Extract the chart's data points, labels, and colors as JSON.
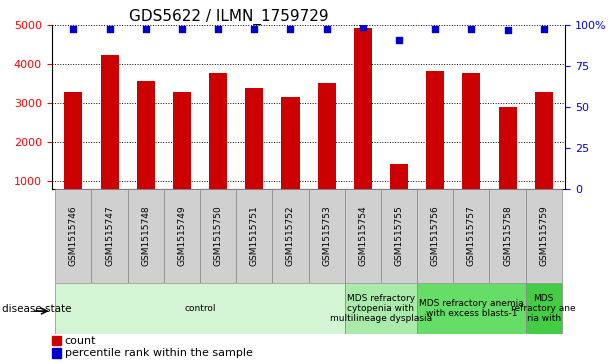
{
  "title": "GDS5622 / ILMN_1759729",
  "samples": [
    "GSM1515746",
    "GSM1515747",
    "GSM1515748",
    "GSM1515749",
    "GSM1515750",
    "GSM1515751",
    "GSM1515752",
    "GSM1515753",
    "GSM1515754",
    "GSM1515755",
    "GSM1515756",
    "GSM1515757",
    "GSM1515758",
    "GSM1515759"
  ],
  "counts": [
    3300,
    4250,
    3580,
    3300,
    3770,
    3400,
    3170,
    3510,
    4940,
    1430,
    3820,
    3770,
    2900,
    3300
  ],
  "percentiles": [
    98,
    98,
    98,
    98,
    98,
    98,
    98,
    98,
    99,
    91,
    98,
    98,
    97,
    98
  ],
  "ylim_left": [
    800,
    5000
  ],
  "ylim_right": [
    0,
    100
  ],
  "yticks_left": [
    1000,
    2000,
    3000,
    4000,
    5000
  ],
  "yticks_right": [
    0,
    25,
    50,
    75,
    100
  ],
  "disease_groups": [
    {
      "label": "control",
      "start": 0,
      "end": 8,
      "color": "#d4f5d4"
    },
    {
      "label": "MDS refractory\ncytopenia with\nmultilineage dysplasia",
      "start": 8,
      "end": 10,
      "color": "#aaeaaa"
    },
    {
      "label": "MDS refractory anemia\nwith excess blasts-1",
      "start": 10,
      "end": 13,
      "color": "#66dd66"
    },
    {
      "label": "MDS\nrefractory ane\nria with",
      "start": 13,
      "end": 14,
      "color": "#44cc44"
    }
  ],
  "bar_color": "#cc0000",
  "dot_color": "#0000cc",
  "bar_width": 0.5,
  "sample_box_color": "#d0d0d0",
  "legend_items": [
    {
      "label": "count",
      "color": "#cc0000"
    },
    {
      "label": "percentile rank within the sample",
      "color": "#0000cc"
    }
  ],
  "title_fontsize": 11
}
